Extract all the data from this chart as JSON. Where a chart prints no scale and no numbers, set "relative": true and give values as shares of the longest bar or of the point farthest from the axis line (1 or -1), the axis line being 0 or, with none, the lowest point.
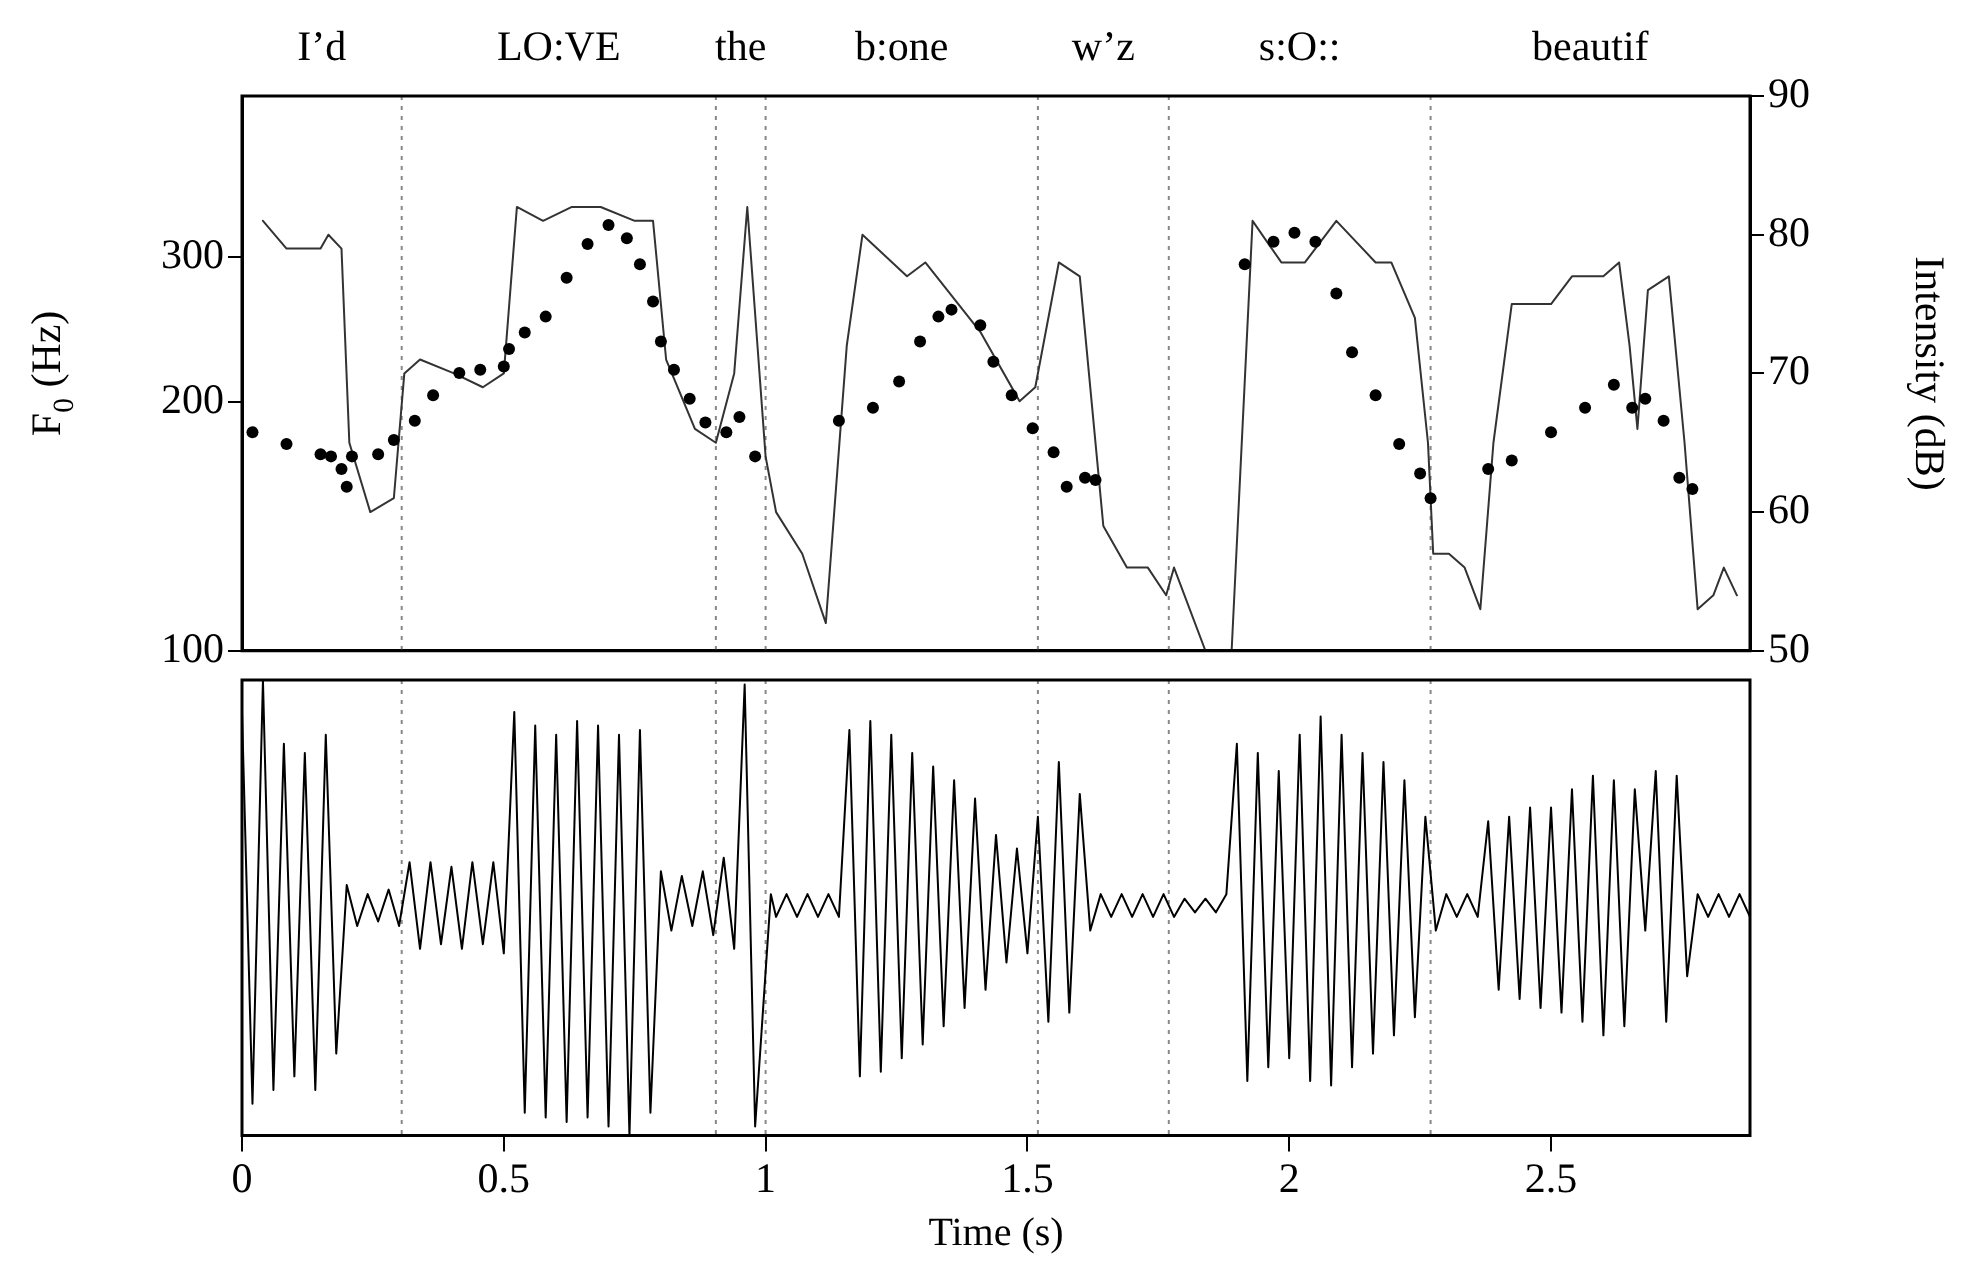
{
  "chart_data": [
    {
      "type": "scatter",
      "ylabel": "F$_{0}$ (Hz)",
      "y2label": "Intensity (dB)",
      "log": "y",
      "xlim": [
        0,
        2.88
      ],
      "ylim": [
        100,
        470
      ],
      "yticks": [
        100,
        200,
        300
      ],
      "y2lim": [
        50,
        90
      ],
      "y2ticks": [
        50,
        60,
        70,
        80,
        90
      ],
      "tick_labels": "y",
      "marker": "circle",
      "ref_lines": [
        {
          "axis": "x",
          "value": 0.305,
          "line_style": "dotted",
          "color": "#888888"
        },
        {
          "axis": "x",
          "value": 0.905,
          "line_style": "dotted",
          "color": "#888888"
        },
        {
          "axis": "x",
          "value": 1.0,
          "line_style": "dotted",
          "color": "#888888"
        },
        {
          "axis": "x",
          "value": 1.52,
          "line_style": "dotted",
          "color": "#888888"
        },
        {
          "axis": "x",
          "value": 1.77,
          "line_style": "dotted",
          "color": "#888888"
        },
        {
          "axis": "x",
          "value": 2.27,
          "line_style": "dotted",
          "color": "#888888"
        }
      ],
      "annotations": [
        "I’d",
        "LO:VE",
        "the",
        "b:one",
        "w’z",
        "s:O::",
        "beautif"
      ],
      "series": [
        {
          "type": "scatter",
          "color": "#000000",
          "x": [
            0.02,
            0.085,
            0.15,
            0.17,
            0.19,
            0.2,
            0.21,
            0.26,
            0.29,
            0.33,
            0.365,
            0.415,
            0.455,
            0.5,
            0.51,
            0.54,
            0.58,
            0.62,
            0.66,
            0.7,
            0.735,
            0.76,
            0.785,
            0.8,
            0.825,
            0.855,
            0.885,
            0.925,
            0.95,
            0.98,
            1.14,
            1.205,
            1.255,
            1.295,
            1.33,
            1.355,
            1.41,
            1.435,
            1.47,
            1.51,
            1.55,
            1.575,
            1.61,
            1.63,
            1.915,
            1.97,
            2.01,
            2.05,
            2.09,
            2.12,
            2.165,
            2.21,
            2.25,
            2.27,
            2.38,
            2.425,
            2.5,
            2.565,
            2.62,
            2.655,
            2.68,
            2.715,
            2.745,
            2.77
          ],
          "values": [
            184,
            178,
            173,
            172,
            166,
            158,
            172,
            173,
            180,
            190,
            204,
            217,
            219,
            221,
            232,
            243,
            254,
            283,
            311,
            328,
            316,
            294,
            265,
            237,
            219,
            202,
            189,
            184,
            192,
            172,
            190,
            197,
            212,
            237,
            254,
            259,
            248,
            224,
            204,
            186,
            174,
            158,
            162,
            161,
            294,
            313,
            321,
            313,
            271,
            230,
            204,
            178,
            164,
            153,
            166,
            170,
            184,
            197,
            210,
            197,
            202,
            190,
            162,
            157
          ]
        },
        {
          "type": "line",
          "axis": "y2",
          "marker": "none",
          "color": "#333333",
          "x": [
            0.04,
            0.085,
            0.15,
            0.165,
            0.19,
            0.205,
            0.245,
            0.29,
            0.31,
            0.34,
            0.405,
            0.46,
            0.5,
            0.525,
            0.575,
            0.63,
            0.685,
            0.75,
            0.785,
            0.81,
            0.865,
            0.905,
            0.94,
            0.965,
            1.0,
            1.02,
            1.07,
            1.115,
            1.155,
            1.185,
            1.27,
            1.305,
            1.41,
            1.485,
            1.515,
            1.56,
            1.6,
            1.645,
            1.69,
            1.73,
            1.765,
            1.78,
            1.84,
            1.865,
            1.89,
            1.93,
            1.985,
            2.03,
            2.09,
            2.165,
            2.195,
            2.24,
            2.265,
            2.275,
            2.305,
            2.335,
            2.365,
            2.39,
            2.425,
            2.5,
            2.54,
            2.6,
            2.63,
            2.65,
            2.665,
            2.685,
            2.725,
            2.755,
            2.78,
            2.81,
            2.83,
            2.855
          ],
          "values": [
            81,
            79,
            79,
            80,
            79,
            65,
            60,
            61,
            70,
            71,
            70,
            69,
            70,
            82,
            81,
            82,
            82,
            81,
            81,
            71,
            66,
            65,
            70,
            82,
            64,
            60,
            57,
            52,
            72,
            80,
            77,
            78,
            73,
            68,
            69,
            78,
            77,
            59,
            56,
            56,
            54,
            56,
            50,
            50,
            50,
            81,
            78,
            78,
            81,
            78,
            78,
            74,
            65,
            57,
            57,
            56,
            53,
            65,
            75,
            75,
            77,
            77,
            78,
            72,
            66,
            76,
            77,
            65,
            53,
            54,
            56,
            54
          ]
        }
      ]
    },
    {
      "type": "line",
      "xlabel": "Time (s)",
      "relative": true,
      "xlim": [
        0,
        2.88
      ],
      "xticks": [
        0,
        0.5,
        1,
        1.5,
        2,
        2.5
      ],
      "tick_labels": "x",
      "marker": "none",
      "color": "#000000",
      "ref_lines": [
        {
          "axis": "x",
          "value": 0.305,
          "line_style": "dotted",
          "color": "#888888"
        },
        {
          "axis": "x",
          "value": 0.905,
          "line_style": "dotted",
          "color": "#888888"
        },
        {
          "axis": "x",
          "value": 1.0,
          "line_style": "dotted",
          "color": "#888888"
        },
        {
          "axis": "x",
          "value": 1.52,
          "line_style": "dotted",
          "color": "#888888"
        },
        {
          "axis": "x",
          "value": 1.77,
          "line_style": "dotted",
          "color": "#888888"
        },
        {
          "axis": "x",
          "value": 2.27,
          "line_style": "dotted",
          "color": "#888888"
        }
      ],
      "x": [
        0,
        0.02,
        0.04,
        0.06,
        0.08,
        0.1,
        0.12,
        0.14,
        0.16,
        0.18,
        0.2,
        0.22,
        0.24,
        0.26,
        0.28,
        0.3,
        0.32,
        0.34,
        0.36,
        0.38,
        0.4,
        0.42,
        0.44,
        0.46,
        0.48,
        0.5,
        0.52,
        0.54,
        0.56,
        0.58,
        0.6,
        0.62,
        0.64,
        0.66,
        0.68,
        0.7,
        0.72,
        0.74,
        0.76,
        0.78,
        0.8,
        0.82,
        0.84,
        0.86,
        0.88,
        0.9,
        0.92,
        0.94,
        0.96,
        0.98,
        1.01,
        1.02,
        1.04,
        1.06,
        1.08,
        1.1,
        1.12,
        1.14,
        1.16,
        1.18,
        1.2,
        1.22,
        1.24,
        1.26,
        1.28,
        1.3,
        1.32,
        1.34,
        1.36,
        1.38,
        1.4,
        1.42,
        1.44,
        1.46,
        1.48,
        1.5,
        1.52,
        1.54,
        1.56,
        1.58,
        1.6,
        1.62,
        1.64,
        1.66,
        1.68,
        1.7,
        1.72,
        1.74,
        1.76,
        1.78,
        1.8,
        1.82,
        1.84,
        1.86,
        1.88,
        1.9,
        1.92,
        1.94,
        1.96,
        1.98,
        2,
        2.02,
        2.04,
        2.06,
        2.08,
        2.1,
        2.12,
        2.14,
        2.16,
        2.18,
        2.2,
        2.22,
        2.24,
        2.26,
        2.28,
        2.3,
        2.32,
        2.34,
        2.36,
        2.38,
        2.4,
        2.42,
        2.44,
        2.46,
        2.48,
        2.5,
        2.52,
        2.54,
        2.56,
        2.58,
        2.6,
        2.62,
        2.64,
        2.66,
        2.68,
        2.7,
        2.72,
        2.74,
        2.76,
        2.78,
        2.8,
        2.82,
        2.84,
        2.86,
        2.88
      ],
      "values": [
        0.93,
        0.07,
        1,
        0.1,
        0.86,
        0.13,
        0.84,
        0.1,
        0.88,
        0.18,
        0.55,
        0.46,
        0.53,
        0.47,
        0.54,
        0.46,
        0.6,
        0.41,
        0.6,
        0.42,
        0.59,
        0.41,
        0.6,
        0.42,
        0.6,
        0.4,
        0.93,
        0.05,
        0.9,
        0.04,
        0.88,
        0.03,
        0.91,
        0.04,
        0.9,
        0.02,
        0.88,
        0,
        0.89,
        0.05,
        0.58,
        0.45,
        0.57,
        0.46,
        0.58,
        0.44,
        0.61,
        0.41,
        0.99,
        0.02,
        0.53,
        0.48,
        0.53,
        0.48,
        0.53,
        0.48,
        0.53,
        0.48,
        0.89,
        0.13,
        0.91,
        0.14,
        0.88,
        0.17,
        0.84,
        0.2,
        0.81,
        0.24,
        0.78,
        0.28,
        0.74,
        0.32,
        0.66,
        0.38,
        0.63,
        0.4,
        0.7,
        0.25,
        0.82,
        0.27,
        0.75,
        0.45,
        0.53,
        0.48,
        0.53,
        0.48,
        0.53,
        0.48,
        0.53,
        0.48,
        0.52,
        0.49,
        0.52,
        0.49,
        0.53,
        0.86,
        0.12,
        0.84,
        0.15,
        0.8,
        0.17,
        0.88,
        0.12,
        0.92,
        0.11,
        0.88,
        0.15,
        0.84,
        0.18,
        0.82,
        0.22,
        0.78,
        0.26,
        0.7,
        0.45,
        0.53,
        0.48,
        0.53,
        0.48,
        0.69,
        0.32,
        0.7,
        0.3,
        0.72,
        0.28,
        0.72,
        0.27,
        0.76,
        0.25,
        0.79,
        0.22,
        0.78,
        0.24,
        0.76,
        0.45,
        0.8,
        0.25,
        0.79,
        0.35,
        0.53,
        0.48,
        0.53,
        0.48,
        0.53,
        0.48
      ]
    }
  ]
}
